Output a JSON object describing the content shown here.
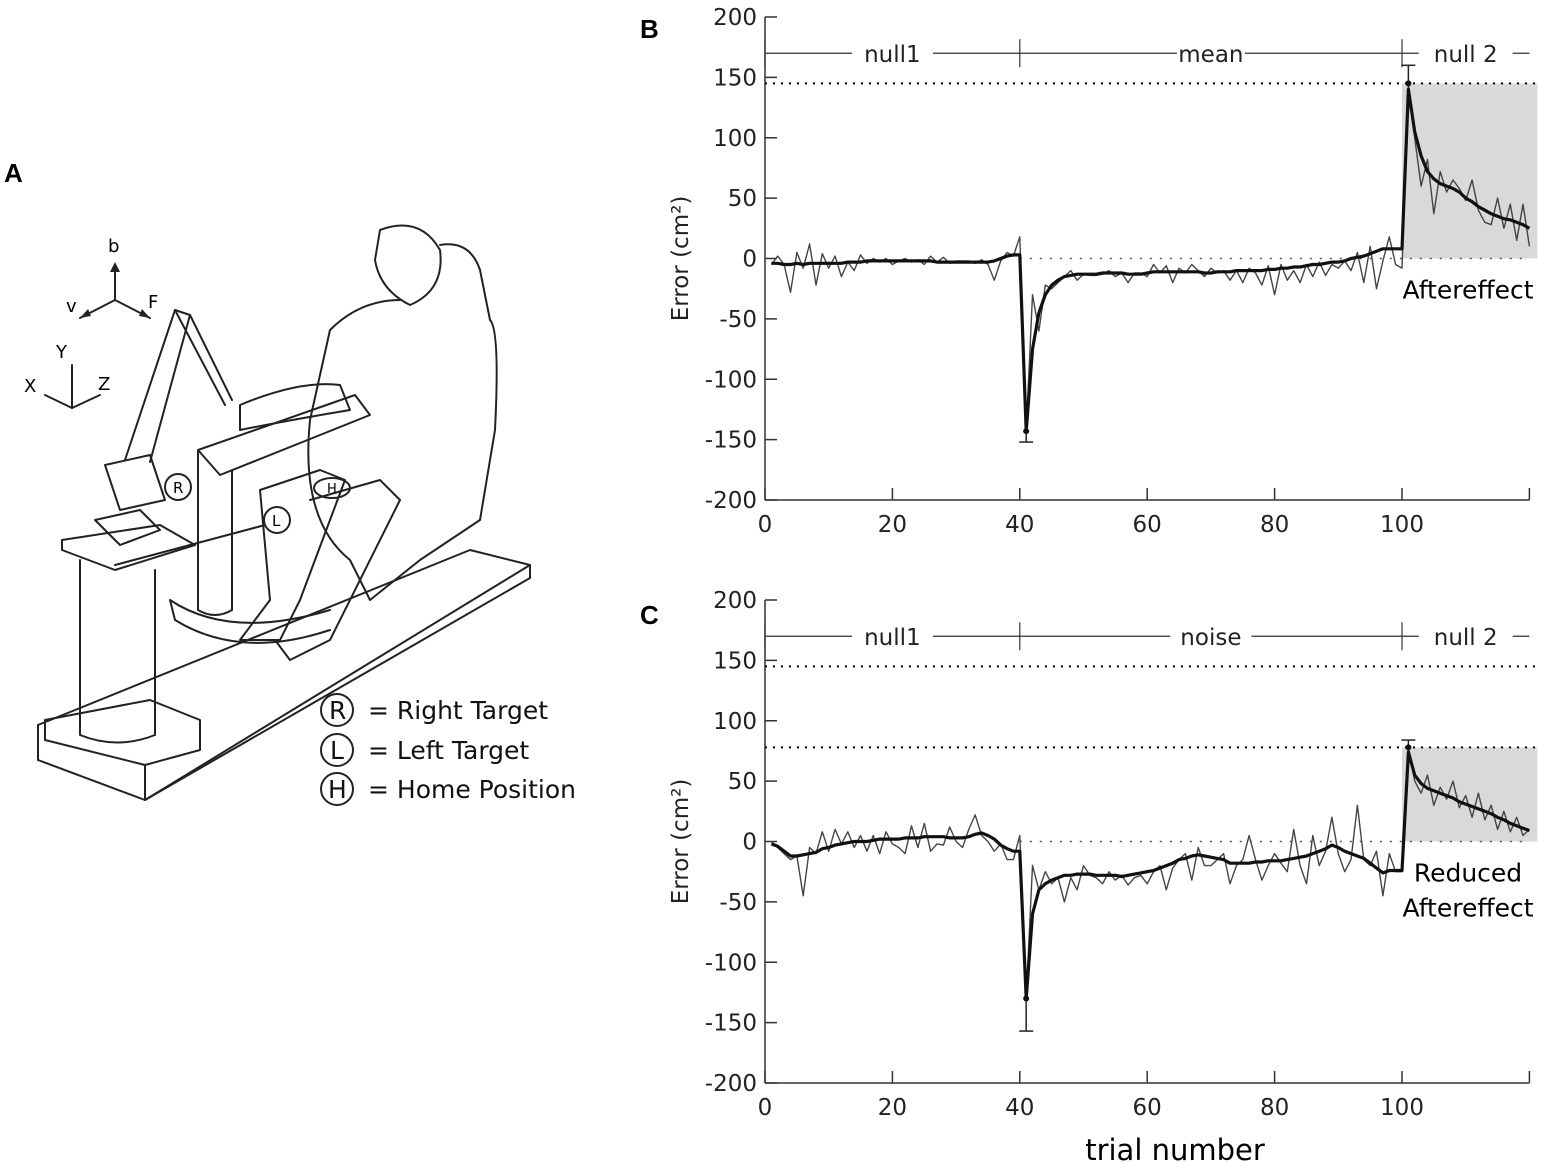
{
  "panels": {
    "a": {
      "label": "A",
      "axes_letters": {
        "b": "b",
        "v": "v",
        "f": "F",
        "x": "X",
        "y": "Y",
        "z": "Z"
      },
      "targets": {
        "r": "R",
        "l": "L",
        "h": "H"
      },
      "legend": [
        {
          "symbol": "R",
          "text": "= Right Target"
        },
        {
          "symbol": "L",
          "text": "= Left Target"
        },
        {
          "symbol": "H",
          "text": "= Home Position"
        }
      ]
    }
  },
  "chart_data": [
    {
      "panel_label": "B",
      "type": "line",
      "ylabel": "Error (cm²)",
      "xlabel": "",
      "xlim": [
        0,
        120
      ],
      "ylim": [
        -200,
        200
      ],
      "xticks": [
        0,
        20,
        40,
        60,
        80,
        100
      ],
      "yticks": [
        200,
        150,
        100,
        50,
        0,
        -50,
        -100,
        -150,
        -200
      ],
      "phases": [
        {
          "label": "null1",
          "start": 0,
          "end": 40
        },
        {
          "label": "mean",
          "start": 40,
          "end": 100
        },
        {
          "label": "null 2",
          "start": 100,
          "end": 120
        }
      ],
      "reference_lines": [
        145
      ],
      "zero_line": true,
      "shaded_region": {
        "x": [
          100,
          120
        ],
        "y": [
          0,
          145
        ],
        "color": "#d9d9d9"
      },
      "annotation": [
        "Aftereffect"
      ],
      "error_bars": [
        {
          "x": 41,
          "y": -143,
          "to": -152
        },
        {
          "x": 101,
          "y": 145,
          "to": 160
        }
      ],
      "series": [
        {
          "style": "thin",
          "values": [
            -5,
            2,
            -5,
            -28,
            5,
            -8,
            12,
            -22,
            4,
            -8,
            2,
            -15,
            -3,
            -10,
            3,
            -4,
            0,
            -3,
            0,
            -5,
            -2,
            0,
            -3,
            -1,
            -5,
            2,
            -3,
            1,
            -4,
            -2,
            -2,
            -2,
            -4,
            -1,
            -5,
            -18,
            -2,
            5,
            2,
            18,
            -143,
            -30,
            -60,
            -22,
            -25,
            -20,
            -15,
            -10,
            -18,
            -13,
            -14,
            -14,
            -13,
            -10,
            -15,
            -12,
            -20,
            -12,
            -12,
            -15,
            -5,
            -12,
            -6,
            -20,
            -8,
            -12,
            -5,
            -10,
            -15,
            -8,
            -12,
            -10,
            -18,
            -10,
            -20,
            -8,
            -12,
            -22,
            -6,
            -30,
            -5,
            -18,
            -10,
            -20,
            -5,
            -15,
            -3,
            -14,
            -5,
            -8,
            -2,
            -10,
            5,
            -20,
            10,
            -25,
            -2,
            18,
            -5,
            -8,
            145,
            100,
            60,
            82,
            37,
            72,
            55,
            65,
            58,
            48,
            65,
            40,
            30,
            28,
            50,
            25,
            45,
            15,
            45,
            10
          ]
        },
        {
          "style": "thick",
          "values": [
            -4,
            -4,
            -5,
            -5,
            -4,
            -5,
            -4,
            -4,
            -4,
            -4,
            -4,
            -4,
            -3,
            -3,
            -3,
            -2,
            -2,
            -2,
            -2,
            -2,
            -2,
            -2,
            -2,
            -2,
            -2,
            -2,
            -3,
            -3,
            -3,
            -3,
            -3,
            -3,
            -3,
            -3,
            -3,
            -2,
            0,
            2,
            3,
            3,
            -143,
            -75,
            -45,
            -30,
            -22,
            -18,
            -15,
            -14,
            -13,
            -13,
            -13,
            -13,
            -12,
            -12,
            -12,
            -12,
            -13,
            -13,
            -13,
            -12,
            -11,
            -11,
            -11,
            -11,
            -11,
            -11,
            -11,
            -11,
            -12,
            -12,
            -11,
            -11,
            -11,
            -10,
            -10,
            -10,
            -10,
            -10,
            -9,
            -9,
            -8,
            -8,
            -7,
            -7,
            -6,
            -5,
            -5,
            -4,
            -3,
            -3,
            -2,
            0,
            1,
            2,
            4,
            6,
            8,
            8,
            8,
            8,
            140,
            105,
            85,
            72,
            66,
            62,
            60,
            58,
            55,
            50,
            47,
            43,
            40,
            37,
            35,
            33,
            32,
            30,
            28,
            25
          ]
        }
      ]
    },
    {
      "panel_label": "C",
      "type": "line",
      "ylabel": "Error (cm²)",
      "xlabel": "trial number",
      "xlim": [
        0,
        120
      ],
      "ylim": [
        -200,
        200
      ],
      "xticks": [
        0,
        20,
        40,
        60,
        80,
        100
      ],
      "yticks": [
        200,
        150,
        100,
        50,
        0,
        -50,
        -100,
        -150,
        -200
      ],
      "phases": [
        {
          "label": "null1",
          "start": 0,
          "end": 40
        },
        {
          "label": "noise",
          "start": 40,
          "end": 100
        },
        {
          "label": "null 2",
          "start": 100,
          "end": 120
        }
      ],
      "reference_lines": [
        145,
        78
      ],
      "zero_line": true,
      "shaded_region": {
        "x": [
          100,
          120
        ],
        "y": [
          0,
          78
        ],
        "color": "#d9d9d9"
      },
      "annotation": [
        "Reduced",
        "Aftereffect"
      ],
      "error_bars": [
        {
          "x": 41,
          "y": -130,
          "to": -157
        },
        {
          "x": 101,
          "y": 78,
          "to": 84
        }
      ],
      "series": [
        {
          "style": "thin",
          "values": [
            0,
            -5,
            -10,
            -15,
            -12,
            -45,
            -5,
            -10,
            8,
            -8,
            10,
            -2,
            8,
            -5,
            5,
            -8,
            5,
            -10,
            8,
            -2,
            -5,
            -10,
            13,
            -5,
            15,
            -8,
            -2,
            -3,
            12,
            0,
            -5,
            10,
            22,
            5,
            0,
            -8,
            -2,
            -15,
            -15,
            5,
            -130,
            -20,
            -40,
            -25,
            -35,
            -30,
            -50,
            -30,
            -40,
            -20,
            -28,
            -30,
            -35,
            -25,
            -32,
            -28,
            -36,
            -30,
            -28,
            -35,
            -25,
            -20,
            -40,
            -22,
            -15,
            -10,
            -32,
            -5,
            -20,
            -20,
            -15,
            -10,
            -35,
            -20,
            -15,
            5,
            -15,
            -32,
            -20,
            -10,
            -18,
            -25,
            10,
            -20,
            -35,
            5,
            -20,
            -8,
            20,
            -10,
            -25,
            -15,
            30,
            -15,
            -20,
            -8,
            -45,
            -10,
            -25,
            -25,
            78,
            50,
            40,
            55,
            30,
            45,
            35,
            50,
            28,
            38,
            20,
            40,
            18,
            30,
            10,
            25,
            8,
            20,
            5,
            10
          ]
        },
        {
          "style": "thick",
          "values": [
            -2,
            -4,
            -8,
            -12,
            -12,
            -11,
            -10,
            -9,
            -6,
            -5,
            -3,
            -2,
            -1,
            0,
            0,
            0,
            1,
            2,
            2,
            2,
            2,
            3,
            3,
            3,
            4,
            4,
            4,
            4,
            3,
            3,
            3,
            4,
            6,
            7,
            5,
            2,
            -3,
            -6,
            -8,
            -8,
            -130,
            -60,
            -40,
            -35,
            -32,
            -30,
            -28,
            -28,
            -27,
            -27,
            -27,
            -28,
            -28,
            -28,
            -28,
            -29,
            -28,
            -27,
            -26,
            -25,
            -24,
            -22,
            -20,
            -18,
            -15,
            -14,
            -12,
            -11,
            -12,
            -13,
            -14,
            -15,
            -18,
            -18,
            -18,
            -18,
            -17,
            -17,
            -16,
            -16,
            -16,
            -15,
            -14,
            -13,
            -12,
            -10,
            -8,
            -6,
            -3,
            -5,
            -8,
            -10,
            -12,
            -14,
            -18,
            -22,
            -26,
            -24,
            -24,
            -24,
            74,
            55,
            48,
            44,
            42,
            40,
            38,
            36,
            33,
            31,
            29,
            27,
            25,
            23,
            20,
            18,
            15,
            13,
            11,
            9
          ]
        }
      ]
    }
  ]
}
